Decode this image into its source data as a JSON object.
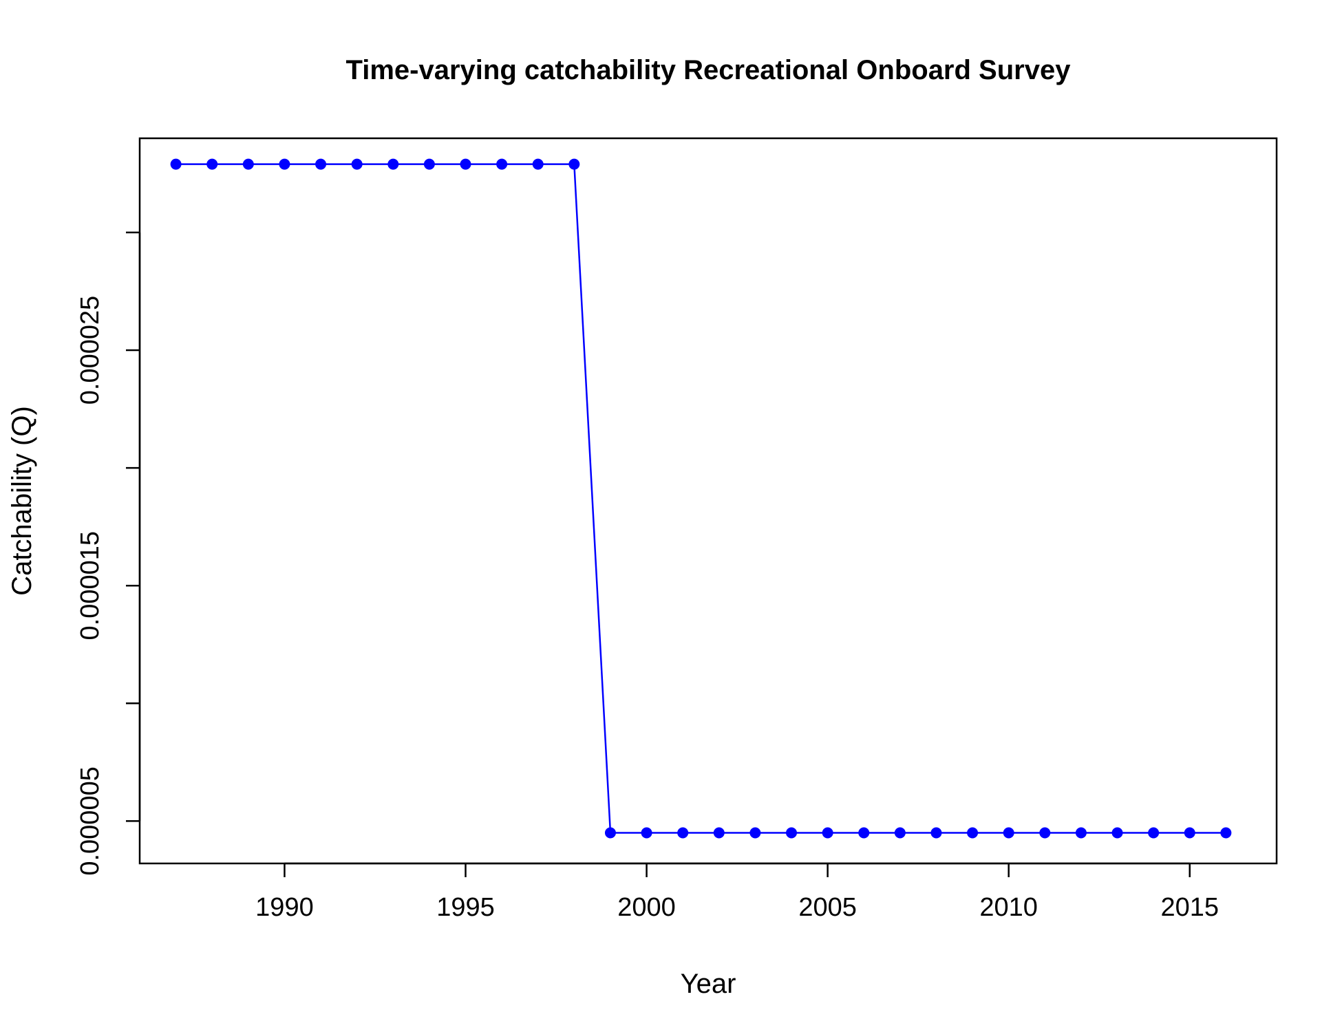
{
  "chart_data": {
    "type": "line",
    "title": "Time-varying catchability Recreational Onboard Survey",
    "xlabel": "Year",
    "ylabel": "Catchability (Q)",
    "xlim": [
      1986,
      2017.4
    ],
    "ylim": [
      3.2e-06,
      3.4e-05
    ],
    "x_ticks": [
      1990,
      1995,
      2000,
      2005,
      2010,
      2015
    ],
    "x_tick_labels": [
      "1990",
      "1995",
      "2000",
      "2005",
      "2010",
      "2015"
    ],
    "y_ticks": [
      5e-06,
      1e-05,
      1.5e-05,
      2e-05,
      2.5e-05,
      3e-05
    ],
    "y_tick_labels": [
      "0.000005",
      "",
      "0.000015",
      "",
      "0.000025",
      ""
    ],
    "grid": false,
    "series": [
      {
        "color": "#0000ff",
        "x": [
          1987,
          1988,
          1989,
          1990,
          1991,
          1992,
          1993,
          1994,
          1995,
          1996,
          1997,
          1998,
          1999,
          2000,
          2001,
          2002,
          2003,
          2004,
          2005,
          2006,
          2007,
          2008,
          2009,
          2010,
          2011,
          2012,
          2013,
          2014,
          2015,
          2016
        ],
        "y": [
          3.29e-05,
          3.29e-05,
          3.29e-05,
          3.29e-05,
          3.29e-05,
          3.29e-05,
          3.29e-05,
          3.29e-05,
          3.29e-05,
          3.29e-05,
          3.29e-05,
          3.29e-05,
          4.5e-06,
          4.5e-06,
          4.5e-06,
          4.5e-06,
          4.5e-06,
          4.5e-06,
          4.5e-06,
          4.5e-06,
          4.5e-06,
          4.5e-06,
          4.5e-06,
          4.5e-06,
          4.5e-06,
          4.5e-06,
          4.5e-06,
          4.5e-06,
          4.5e-06,
          4.5e-06
        ]
      }
    ]
  }
}
